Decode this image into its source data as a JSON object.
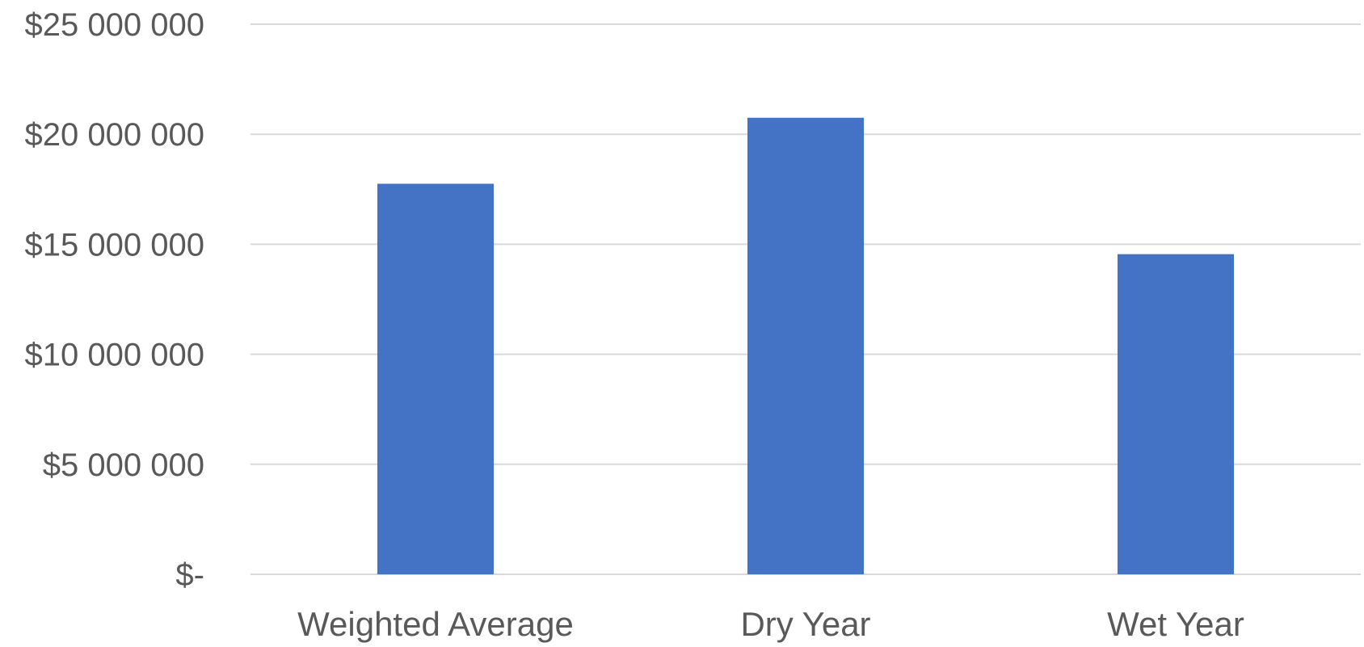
{
  "chart_data": {
    "type": "bar",
    "title": "",
    "xlabel": "",
    "ylabel": "",
    "categories": [
      "Weighted Average",
      "Dry Year",
      "Wet Year"
    ],
    "values": [
      17750000,
      20750000,
      14550000
    ],
    "ylim": [
      0,
      25000000
    ],
    "y_ticks": [
      {
        "value": 0,
        "label": "$-"
      },
      {
        "value": 5000000,
        "label": "$5 000 000"
      },
      {
        "value": 10000000,
        "label": "$10 000 000"
      },
      {
        "value": 15000000,
        "label": "$15 000 000"
      },
      {
        "value": 20000000,
        "label": "$20 000 000"
      },
      {
        "value": 25000000,
        "label": "$25 000 000"
      }
    ],
    "grid": true,
    "legend": "none",
    "colors": {
      "bar": "#4472c4",
      "grid": "#d9d9d9",
      "text": "#595959"
    }
  }
}
